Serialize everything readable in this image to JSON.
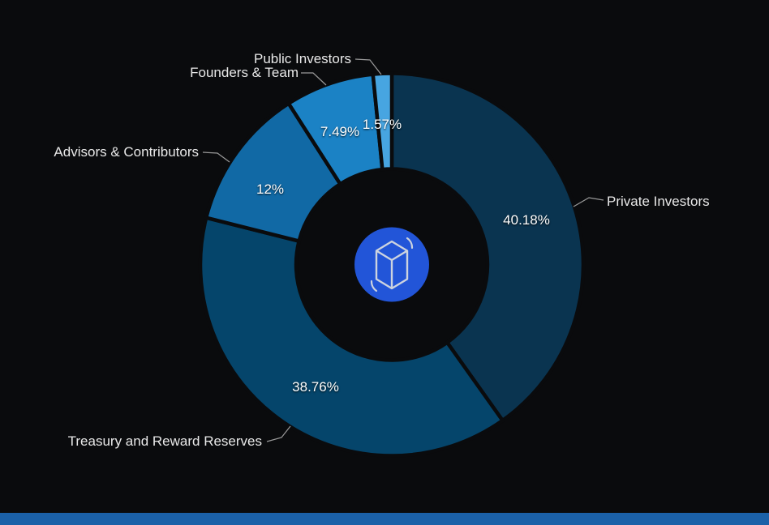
{
  "chart_data": {
    "type": "pie",
    "subtype": "donut",
    "title": "",
    "legend": "none",
    "start_angle_deg": 0,
    "direction": "clockwise",
    "center_icon": "fantom-logo",
    "segments": [
      {
        "name": "Private Investors",
        "value": 40.18,
        "pct_label": "40.18%",
        "color": "#0a3450"
      },
      {
        "name": "Treasury and Reward Reserves",
        "value": 38.76,
        "pct_label": "38.76%",
        "color": "#05456b"
      },
      {
        "name": "Advisors & Contributors",
        "value": 12.0,
        "pct_label": "12%",
        "color": "#1169a5"
      },
      {
        "name": "Founders & Team",
        "value": 7.49,
        "pct_label": "7.49%",
        "color": "#1b82c5"
      },
      {
        "name": "Public Investors",
        "value": 1.57,
        "pct_label": "1.57%",
        "color": "#47a5e1"
      }
    ]
  },
  "colors": {
    "background": "#0a0b0d",
    "label_text": "#e9e9e9",
    "value_text": "#ffffff",
    "connector": "#9a9a9a",
    "logo_circle": "#2255d8",
    "logo_stroke": "#ccd3df",
    "bottom_bar": "#1b61a8"
  }
}
